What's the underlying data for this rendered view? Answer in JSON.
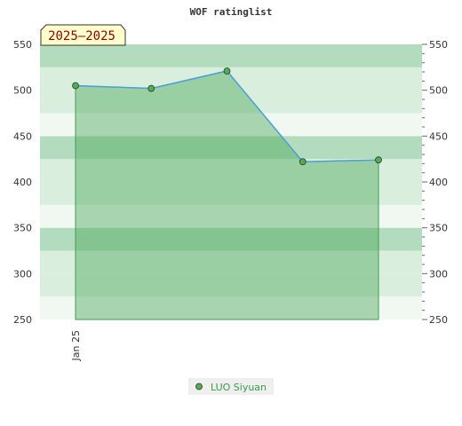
{
  "chart_data": {
    "type": "area",
    "title": "WOF ratinglist",
    "badge": "2025—2025",
    "x": [
      0,
      1,
      2,
      3,
      4
    ],
    "x_tick_labels": [
      "Jan 25"
    ],
    "x_tick_positions": [
      0
    ],
    "xlabel": "",
    "ylabel": "",
    "ylim": [
      250,
      550
    ],
    "y_ticks": [
      250,
      300,
      350,
      400,
      450,
      500,
      550
    ],
    "grid": true,
    "legend_position": "bottom-center",
    "series": [
      {
        "name": "LUO Siyuan",
        "values": [
          505,
          502,
          521,
          422,
          424
        ]
      }
    ],
    "colors": {
      "line": "#4a9fd8",
      "fill": "#3ca04e",
      "marker": "#4caf50",
      "band_light": "#f1f8f2",
      "band_mid": "#d9eedd",
      "band_dark": "#b3dcbe",
      "badge_bg": "#ffffcc",
      "badge_text": "#8b0000",
      "legend_text": "#3a9a4a"
    }
  }
}
